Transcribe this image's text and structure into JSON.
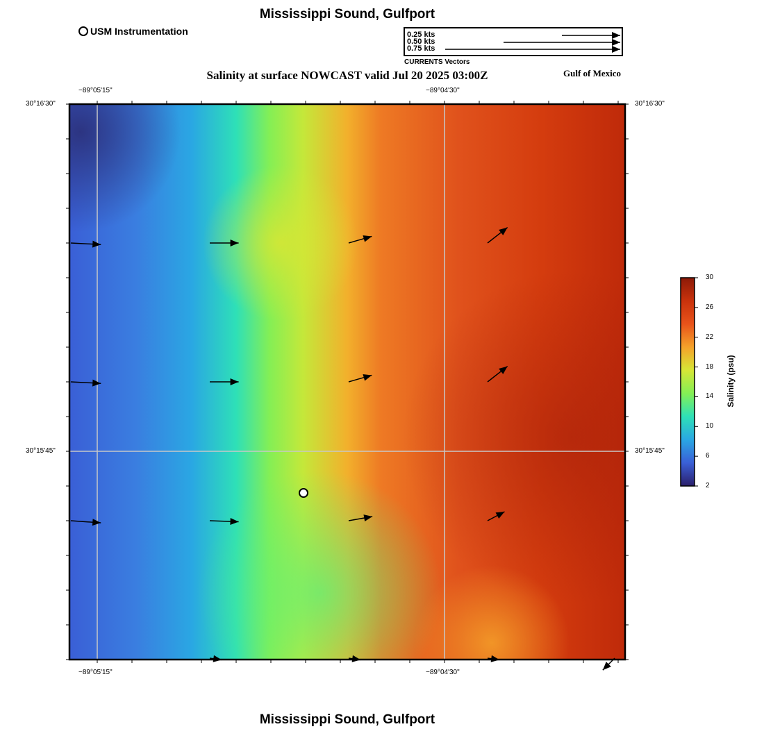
{
  "header": {
    "title": "Mississippi Sound, Gulfport",
    "subtitle": "Salinity at surface NOWCAST valid Jul 20 2025 03:00Z",
    "region": "Gulf of Mexico",
    "footer_title": "Mississippi Sound, Gulfport"
  },
  "legend": {
    "station_label": "USM Instrumentation",
    "vector_scale": [
      {
        "label": "0.25 kts",
        "speed": 0.25
      },
      {
        "label": "0.50 kts",
        "speed": 0.5
      },
      {
        "label": "0.75 kts",
        "speed": 0.75
      }
    ],
    "vector_title": "CURRENTS Vectors"
  },
  "axes": {
    "lon_ticks": [
      "−89°05'15\"",
      "−89°04'30\""
    ],
    "lat_ticks": [
      "30°16'30\"",
      "30°15'45\""
    ]
  },
  "colorbar": {
    "title": "Salinity (psu)",
    "min": 2,
    "max": 30,
    "ticks": [
      "30",
      "26",
      "22",
      "18",
      "14",
      "10",
      "6",
      "2"
    ],
    "colors": [
      "#2b1f6b",
      "#3a5fd6",
      "#2aa7e3",
      "#2ee0b7",
      "#84ef55",
      "#d6e636",
      "#f5a22a",
      "#e8531a",
      "#c9320c",
      "#8c1a08"
    ]
  },
  "map": {
    "station": {
      "name": "USM Instrumentation"
    },
    "currents": [
      {
        "row": 0,
        "col": 0,
        "dir_deg": -3,
        "speed": 0.25
      },
      {
        "row": 0,
        "col": 1,
        "dir_deg": 0,
        "speed": 0.24
      },
      {
        "row": 0,
        "col": 2,
        "dir_deg": 16,
        "speed": 0.2
      },
      {
        "row": 0,
        "col": 3,
        "dir_deg": 38,
        "speed": 0.21
      },
      {
        "row": 1,
        "col": 0,
        "dir_deg": -3,
        "speed": 0.25
      },
      {
        "row": 1,
        "col": 1,
        "dir_deg": 0,
        "speed": 0.24
      },
      {
        "row": 1,
        "col": 2,
        "dir_deg": 16,
        "speed": 0.2
      },
      {
        "row": 1,
        "col": 3,
        "dir_deg": 38,
        "speed": 0.21
      },
      {
        "row": 2,
        "col": 0,
        "dir_deg": -4,
        "speed": 0.25
      },
      {
        "row": 2,
        "col": 1,
        "dir_deg": -2,
        "speed": 0.24
      },
      {
        "row": 2,
        "col": 2,
        "dir_deg": 10,
        "speed": 0.2
      },
      {
        "row": 2,
        "col": 3,
        "dir_deg": 28,
        "speed": 0.16
      },
      {
        "row": 3,
        "col": 1,
        "dir_deg": -8,
        "speed": 0.1
      },
      {
        "row": 3,
        "col": 2,
        "dir_deg": -8,
        "speed": 0.1
      },
      {
        "row": 3,
        "col": 3,
        "dir_deg": -8,
        "speed": 0.1
      },
      {
        "row": 3,
        "col": 4,
        "dir_deg": -135,
        "speed": 0.14
      }
    ]
  }
}
